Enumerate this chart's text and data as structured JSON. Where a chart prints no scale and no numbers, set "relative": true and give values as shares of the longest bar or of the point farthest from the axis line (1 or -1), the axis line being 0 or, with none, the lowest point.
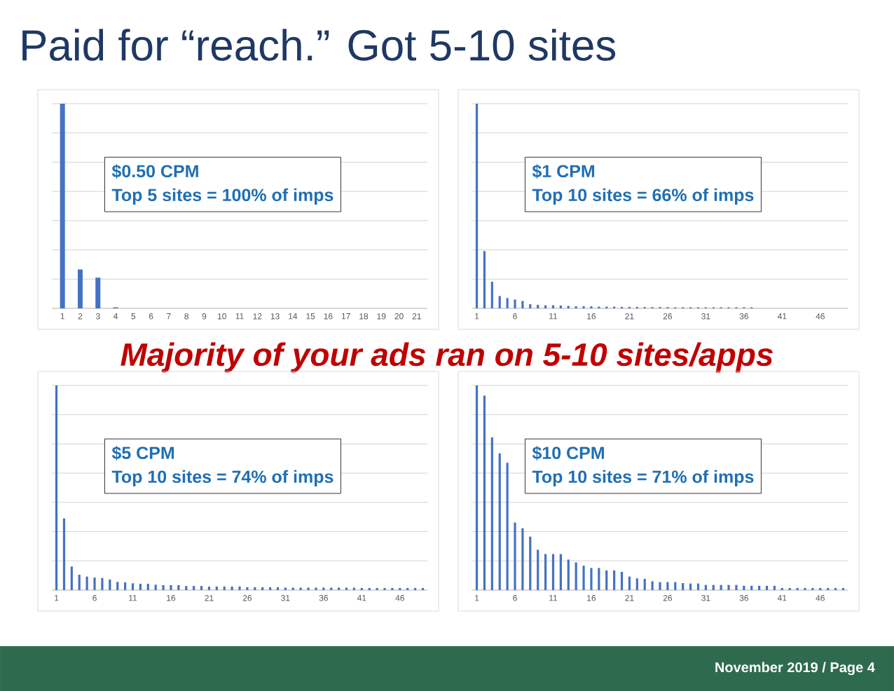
{
  "chart_data": [
    {
      "type": "other",
      "title": "Paid for “reach.”  Got 5-10 sites",
      "subtitle": "Majority of your ads ran on 5-10 sites/apps",
      "annotations": [
        "November 2019 / Page 4"
      ]
    },
    {
      "type": "bar",
      "relative": true,
      "grid": "y",
      "color": "#4472c4",
      "annotations": [
        "$0.50 CPM",
        "Top 5 sites = 100% of imps"
      ],
      "categories": [
        "1",
        "2",
        "3",
        "4",
        "5",
        "6",
        "7",
        "8",
        "9",
        "10",
        "11",
        "12",
        "13",
        "14",
        "15",
        "16",
        "17",
        "18",
        "19",
        "20",
        "21"
      ],
      "values": [
        1,
        0.19,
        0.15,
        0.005,
        0,
        0,
        0,
        0,
        0,
        0,
        0,
        0,
        0,
        0,
        0,
        0,
        0,
        0,
        0,
        0,
        0
      ]
    },
    {
      "type": "bar",
      "relative": true,
      "grid": "y",
      "color": "#4472c4",
      "annotations": [
        "$1 CPM",
        "Top 10 sites = 66% of imps"
      ],
      "categories": [
        "1",
        null,
        null,
        null,
        null,
        "6",
        null,
        null,
        null,
        null,
        "11",
        null,
        null,
        null,
        null,
        "16",
        null,
        null,
        null,
        null,
        "21",
        null,
        null,
        null,
        null,
        "26",
        null,
        null,
        null,
        null,
        "31",
        null,
        null,
        null,
        null,
        "36",
        null,
        null,
        null,
        null,
        "41",
        null,
        null,
        null,
        null,
        "46",
        null,
        null,
        null
      ],
      "values": [
        1,
        0.28,
        0.13,
        0.06,
        0.05,
        0.043,
        0.036,
        0.02,
        0.017,
        0.015,
        0.015,
        0.014,
        0.012,
        0.01,
        0.01,
        0.01,
        0.008,
        0.008,
        0.008,
        0.007,
        0.007,
        0.007,
        0.006,
        0.006,
        0.006,
        0.006,
        0.005,
        0.005,
        0.005,
        0.005,
        0.005,
        0.005,
        0.005,
        0.005,
        0.005,
        0.005,
        0.005,
        0,
        0,
        0,
        0,
        0,
        0,
        0,
        0,
        0,
        0,
        0,
        0
      ]
    },
    {
      "type": "bar",
      "relative": true,
      "grid": "y",
      "color": "#4472c4",
      "annotations": [
        "$5 CPM",
        "Top 10 sites = 74% of imps"
      ],
      "categories": [
        "1",
        null,
        null,
        null,
        null,
        "6",
        null,
        null,
        null,
        null,
        "11",
        null,
        null,
        null,
        null,
        "16",
        null,
        null,
        null,
        null,
        "21",
        null,
        null,
        null,
        null,
        "26",
        null,
        null,
        null,
        null,
        "31",
        null,
        null,
        null,
        null,
        "36",
        null,
        null,
        null,
        null,
        "41",
        null,
        null,
        null,
        null,
        "46",
        null,
        null,
        null
      ],
      "values": [
        1,
        0.35,
        0.115,
        0.075,
        0.066,
        0.061,
        0.059,
        0.052,
        0.04,
        0.038,
        0.033,
        0.031,
        0.031,
        0.026,
        0.024,
        0.024,
        0.024,
        0.02,
        0.02,
        0.02,
        0.017,
        0.017,
        0.017,
        0.017,
        0.017,
        0.014,
        0.014,
        0.014,
        0.014,
        0.014,
        0.012,
        0.012,
        0.012,
        0.012,
        0.012,
        0.012,
        0.012,
        0.012,
        0.012,
        0.012,
        0.01,
        0.01,
        0.01,
        0.01,
        0.01,
        0.01,
        0.01,
        0.01,
        0.01
      ]
    },
    {
      "type": "bar",
      "relative": true,
      "grid": "y",
      "color": "#4472c4",
      "annotations": [
        "$10 CPM",
        "Top 10 sites = 71% of imps"
      ],
      "categories": [
        "1",
        null,
        null,
        null,
        null,
        "6",
        null,
        null,
        null,
        null,
        "11",
        null,
        null,
        null,
        null,
        "16",
        null,
        null,
        null,
        null,
        "21",
        null,
        null,
        null,
        null,
        "26",
        null,
        null,
        null,
        null,
        "31",
        null,
        null,
        null,
        null,
        "36",
        null,
        null,
        null,
        null,
        "41",
        null,
        null,
        null,
        null,
        "46",
        null,
        null,
        null
      ],
      "values": [
        1,
        0.95,
        0.746,
        0.668,
        0.622,
        0.33,
        0.302,
        0.261,
        0.197,
        0.176,
        0.176,
        0.176,
        0.149,
        0.135,
        0.119,
        0.108,
        0.108,
        0.096,
        0.096,
        0.089,
        0.066,
        0.057,
        0.055,
        0.043,
        0.039,
        0.039,
        0.039,
        0.034,
        0.032,
        0.032,
        0.025,
        0.025,
        0.025,
        0.025,
        0.025,
        0.021,
        0.021,
        0.021,
        0.021,
        0.021,
        0.01,
        0.01,
        0.01,
        0.01,
        0.01,
        0.01,
        0.01,
        0.01,
        0.01
      ]
    }
  ]
}
